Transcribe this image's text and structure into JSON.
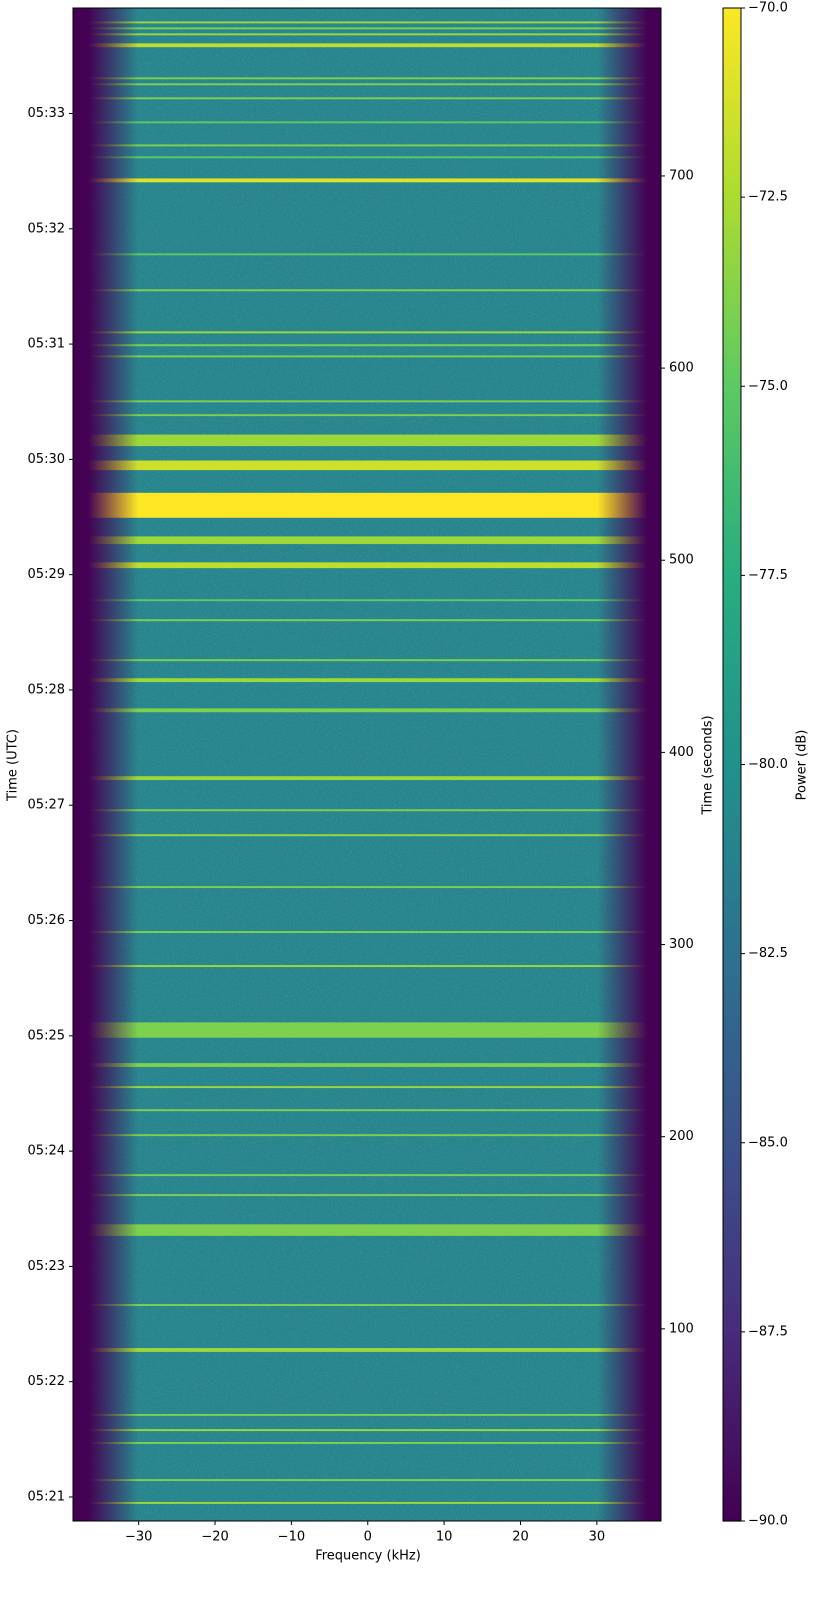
{
  "chart_data": {
    "type": "spectrogram",
    "xlabel": "Frequency (kHz)",
    "ylabel": "Time (UTC)",
    "y2label": "Time (seconds)",
    "colorbar_label": "Power (dB)",
    "xlim": [
      -38.6,
      38.4
    ],
    "xticks": [
      {
        "value": -30,
        "label": "−30"
      },
      {
        "value": -20,
        "label": "−20"
      },
      {
        "value": -10,
        "label": "−10"
      },
      0,
      10,
      20,
      30
    ],
    "ylim": [
      0,
      787.4
    ],
    "yticks": [
      {
        "value": 12.5,
        "label": "05:21"
      },
      {
        "value": 72.5,
        "label": "05:22"
      },
      {
        "value": 132.5,
        "label": "05:23"
      },
      {
        "value": 192.5,
        "label": "05:24"
      },
      {
        "value": 252.5,
        "label": "05:25"
      },
      {
        "value": 312.5,
        "label": "05:26"
      },
      {
        "value": 372.5,
        "label": "05:27"
      },
      {
        "value": 432.5,
        "label": "05:28"
      },
      {
        "value": 492.5,
        "label": "05:29"
      },
      {
        "value": 552.5,
        "label": "05:30"
      },
      {
        "value": 612.5,
        "label": "05:31"
      },
      {
        "value": 672.5,
        "label": "05:32"
      },
      {
        "value": 732.5,
        "label": "05:33"
      }
    ],
    "y2lim": [
      0,
      787.4
    ],
    "y2ticks": [
      100,
      200,
      300,
      400,
      500,
      600,
      700
    ],
    "clim": [
      -90,
      -70
    ],
    "cticks": [
      {
        "value": -90,
        "label": "−90.0"
      },
      {
        "value": -87.5,
        "label": "−87.5"
      },
      {
        "value": -85,
        "label": "−85.0"
      },
      {
        "value": -82.5,
        "label": "−82.5"
      },
      {
        "value": -80,
        "label": "−80.0"
      },
      {
        "value": -77.5,
        "label": "−77.5"
      },
      {
        "value": -75,
        "label": "−75.0"
      },
      {
        "value": -72.5,
        "label": "−72.5"
      },
      {
        "value": -70,
        "label": "−70.0"
      }
    ],
    "colormap": [
      "#440154",
      "#472d7b",
      "#3b528b",
      "#2c728e",
      "#21918c",
      "#28ae80",
      "#5ec962",
      "#addc30",
      "#fde725"
    ],
    "noise_power_db": -81,
    "band_khz": [
      -33,
      33
    ],
    "bursts": {
      "time_s": [
        779.9,
        776.8,
        773.7,
        768.0,
        750.8,
        747.7,
        740.4,
        727.9,
        715.9,
        709.7,
        697.7,
        659.2,
        640.5,
        618.6,
        611.9,
        606.1,
        582.7,
        575.5,
        562.4,
        549.4,
        528.6,
        510.4,
        497.4,
        479.2,
        468.8,
        448.0,
        437.6,
        421.9,
        386.6,
        369.9,
        356.9,
        329.9,
        306.5,
        288.8,
        255.5,
        237.3,
        225.8,
        213.8,
        200.8,
        180.0,
        169.6,
        151.4,
        112.4,
        89.0,
        55.2,
        47.3,
        40.6,
        21.3,
        9.4
      ],
      "duration_s": [
        1,
        1,
        1,
        2,
        1,
        1,
        1,
        1,
        1,
        1,
        2,
        1,
        1,
        1,
        1,
        1,
        1,
        1,
        6,
        5,
        13,
        4,
        3,
        1,
        1,
        1,
        2,
        2,
        2,
        1,
        1,
        1,
        1,
        1,
        8,
        2,
        1,
        1,
        1,
        1,
        1,
        6,
        1,
        2,
        1,
        1,
        1,
        1,
        1
      ],
      "power_db": [
        -73,
        -74,
        -73,
        -72,
        -74,
        -74,
        -74,
        -75,
        -74,
        -75,
        -71,
        -75,
        -74,
        -73,
        -74,
        -74,
        -74,
        -74,
        -73,
        -71.5,
        -70,
        -73,
        -72,
        -75,
        -74,
        -74,
        -73,
        -74,
        -73,
        -74,
        -73,
        -74,
        -74,
        -73,
        -74,
        -74,
        -73,
        -74,
        -74,
        -74,
        -74,
        -74,
        -74,
        -73,
        -74,
        -73,
        -74,
        -74,
        -73
      ]
    }
  }
}
